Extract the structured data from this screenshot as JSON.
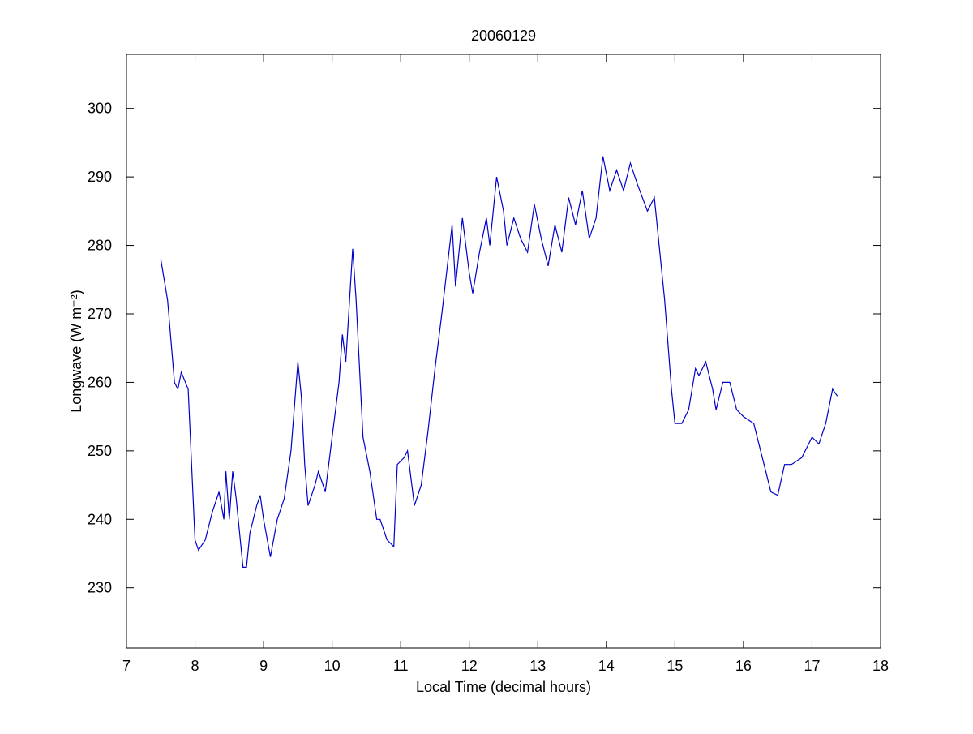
{
  "chart_data": {
    "type": "line",
    "title": "20060129",
    "xlabel": "Local Time (decimal hours)",
    "ylabel": "Longwave (W m⁻²)",
    "xlim": [
      7,
      18
    ],
    "xticks": [
      7,
      8,
      9,
      10,
      11,
      12,
      13,
      14,
      15,
      16,
      17,
      18
    ],
    "ylim": [
      221.2,
      307.9
    ],
    "yticks": [
      230,
      240,
      250,
      260,
      270,
      280,
      290,
      300
    ],
    "x": [
      7.5,
      7.6,
      7.7,
      7.75,
      7.8,
      7.9,
      8.0,
      8.05,
      8.15,
      8.25,
      8.35,
      8.42,
      8.45,
      8.5,
      8.55,
      8.6,
      8.7,
      8.75,
      8.8,
      8.9,
      8.95,
      9.0,
      9.1,
      9.2,
      9.3,
      9.4,
      9.5,
      9.55,
      9.6,
      9.65,
      9.75,
      9.8,
      9.9,
      10.0,
      10.1,
      10.15,
      10.2,
      10.3,
      10.35,
      10.45,
      10.55,
      10.65,
      10.7,
      10.8,
      10.9,
      10.95,
      11.05,
      11.1,
      11.2,
      11.3,
      11.4,
      11.5,
      11.6,
      11.75,
      11.8,
      11.9,
      12.0,
      12.05,
      12.15,
      12.25,
      12.3,
      12.4,
      12.5,
      12.55,
      12.65,
      12.75,
      12.85,
      12.95,
      13.05,
      13.15,
      13.25,
      13.35,
      13.45,
      13.55,
      13.65,
      13.75,
      13.85,
      13.95,
      14.05,
      14.15,
      14.25,
      14.35,
      14.45,
      14.6,
      14.7,
      14.85,
      14.95,
      15.0,
      15.1,
      15.2,
      15.3,
      15.35,
      15.45,
      15.55,
      15.6,
      15.7,
      15.8,
      15.9,
      16.0,
      16.15,
      16.3,
      16.4,
      16.5,
      16.6,
      16.7,
      16.85,
      17.0,
      17.1,
      17.2,
      17.3,
      17.37
    ],
    "series": [
      {
        "color": "#0000cc",
        "values": [
          278,
          272,
          260,
          259,
          261.5,
          259,
          237,
          235.5,
          237,
          241,
          244,
          240,
          247,
          240,
          247,
          243,
          233,
          233,
          238,
          242,
          243.5,
          240,
          234.5,
          240,
          243,
          250,
          263,
          258,
          248,
          242,
          245,
          247,
          244,
          252,
          260,
          267,
          263,
          279.5,
          272,
          252,
          247,
          240,
          240,
          237,
          236,
          248,
          249,
          250,
          242,
          245,
          253,
          262,
          270,
          283,
          274,
          284,
          276,
          273,
          279,
          284,
          280,
          290,
          285,
          280,
          284,
          281,
          279,
          286,
          281,
          277,
          283,
          279,
          287,
          283,
          288,
          281,
          284,
          293,
          288,
          291,
          288,
          292,
          289,
          285,
          287,
          272,
          259,
          254,
          254,
          256,
          262,
          261,
          263,
          259,
          256,
          260,
          260,
          256,
          255,
          254,
          248,
          244,
          243.5,
          248,
          248,
          249,
          252,
          251,
          254,
          259,
          258
        ]
      }
    ]
  }
}
